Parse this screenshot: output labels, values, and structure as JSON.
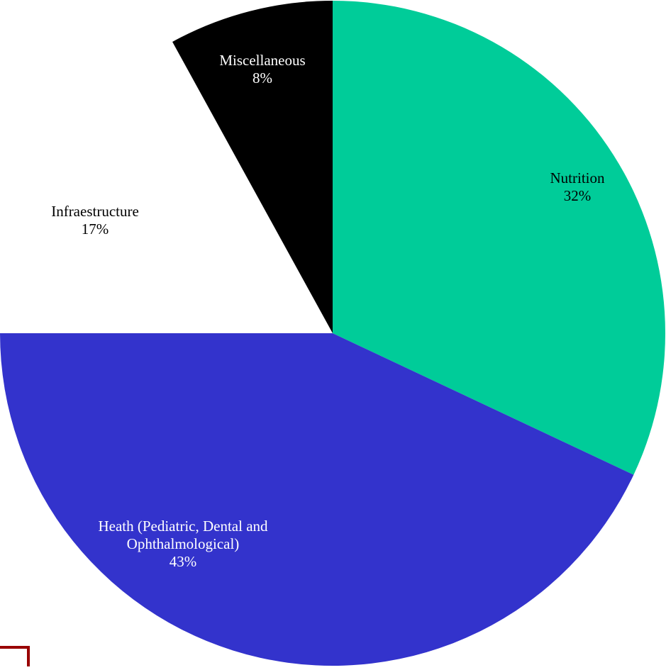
{
  "chart_data": {
    "type": "pie",
    "title": "",
    "start_angle_deg": 0,
    "direction": "clockwise",
    "slices": [
      {
        "label": "Nutrition",
        "value": 32,
        "display": "32%",
        "color": "#00CC99",
        "label_color": "#000000"
      },
      {
        "label": "Heath (Pediatric, Dental and Ophthalmological)",
        "value": 43,
        "display": "43%",
        "color": "#3333CC",
        "label_color": "#ffffff"
      },
      {
        "label": "Infraestructure",
        "value": 17,
        "display": "17%",
        "color": "#ffffff",
        "label_color": "#000000"
      },
      {
        "label": "Miscellaneous",
        "value": 8,
        "display": "8%",
        "color": "#000000",
        "label_color": "#ffffff"
      }
    ],
    "legend": "none"
  },
  "colors": {
    "background": "#ffffff",
    "corner_mark": "#990000"
  }
}
